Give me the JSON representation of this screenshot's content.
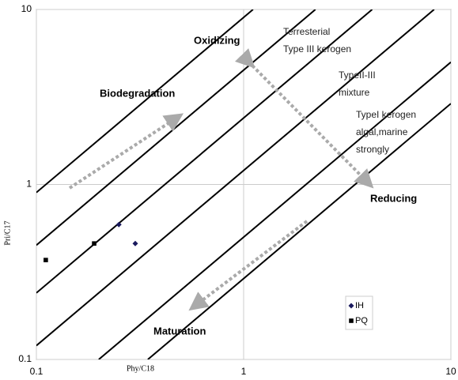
{
  "chart_data": {
    "type": "scatter",
    "x_label": "Phy/C18",
    "y_label": "Pri/C17",
    "xlim": [
      0.1,
      10
    ],
    "ylim": [
      0.1,
      10
    ],
    "xticks": [
      0.1,
      1,
      10
    ],
    "yticks": [
      0.1,
      1,
      10
    ],
    "log_x": true,
    "log_y": true,
    "grid": true,
    "legend": "lower right",
    "series": [
      {
        "name": "IH",
        "color": "#1a1a5e",
        "marker": "diamond",
        "x": [
          0.25,
          0.3
        ],
        "values": [
          0.59,
          0.46
        ]
      },
      {
        "name": "PQ",
        "color": "#000000",
        "marker": "square",
        "x": [
          0.111,
          0.19
        ],
        "values": [
          0.37,
          0.46
        ]
      }
    ],
    "lines": [
      {
        "x": [
          0.1,
          1.11
        ],
        "y": [
          0.9,
          10
        ]
      },
      {
        "x": [
          0.1,
          2.22
        ],
        "y": [
          0.45,
          10
        ]
      },
      {
        "x": [
          0.1,
          4.17
        ],
        "y": [
          0.24,
          10
        ]
      },
      {
        "x": [
          0.1,
          8.3
        ],
        "y": [
          0.12,
          10
        ]
      },
      {
        "x": [
          0.2,
          10
        ],
        "y": [
          0.1,
          5
        ]
      },
      {
        "x": [
          0.345,
          10
        ],
        "y": [
          0.1,
          2.9
        ]
      }
    ],
    "annotations": [
      "Oxidizing",
      "Terresterial",
      "Type III kerogen",
      "TypeII-III",
      "mixture",
      "TypeI kerogen",
      "algal,marine",
      "strongly",
      "Biodegradation",
      "Reducing",
      "Maturation"
    ]
  }
}
